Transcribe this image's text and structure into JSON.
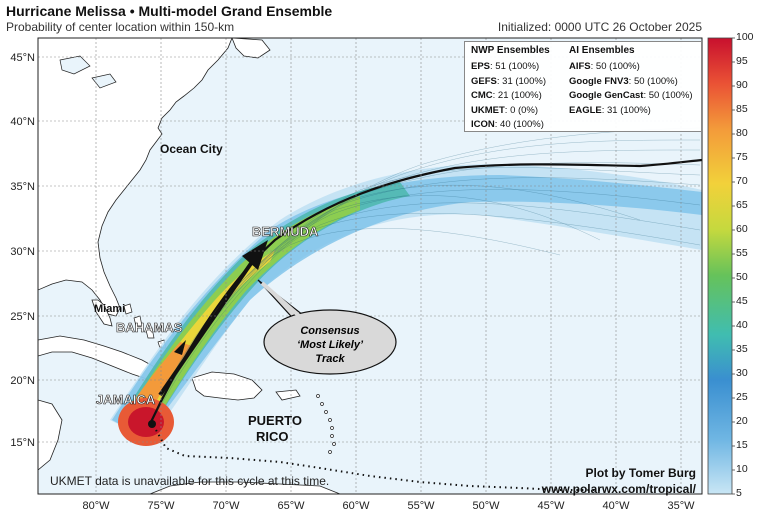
{
  "header": {
    "title": "Hurricane Melissa • Multi-model Grand Ensemble",
    "subtitle": "Probability of center location within 150-km",
    "initialized": "Initialized: 0000 UTC 26 October 2025"
  },
  "map": {
    "lon_labels": [
      "80°W",
      "75°W",
      "70°W",
      "65°W",
      "60°W",
      "55°W",
      "50°W",
      "45°W",
      "40°W",
      "35°W"
    ],
    "lat_labels": [
      "15°N",
      "20°N",
      "25°N",
      "30°N",
      "35°N",
      "40°N",
      "45°N"
    ],
    "place_labels": {
      "ocean_city": "Ocean City",
      "miami": "Miami",
      "bahamas": "BAHAMAS",
      "jamaica": "JAMAICA",
      "puerto_rico_1": "PUERTO",
      "puerto_rico_2": "RICO",
      "bermuda": "BERMUDA"
    },
    "callout": {
      "line1": "Consensus",
      "line2": "‘Most Likely’",
      "line3": "Track"
    }
  },
  "ensembles": {
    "nwp_header": "NWP Ensembles",
    "ai_header": "AI Ensembles",
    "nwp": [
      {
        "name": "EPS",
        "value": "51 (100%)"
      },
      {
        "name": "GEFS",
        "value": "31 (100%)"
      },
      {
        "name": "CMC",
        "value": "21 (100%)"
      },
      {
        "name": "UKMET",
        "value": "0 (0%)"
      },
      {
        "name": "ICON",
        "value": "40 (100%)"
      }
    ],
    "ai": [
      {
        "name": "AIFS",
        "value": "50 (100%)"
      },
      {
        "name": "Google FNV3",
        "value": "50 (100%)"
      },
      {
        "name": "Google GenCast",
        "value": "50 (100%)"
      },
      {
        "name": "EAGLE",
        "value": "31 (100%)"
      }
    ]
  },
  "colorbar": {
    "ticks": [
      "5",
      "10",
      "15",
      "20",
      "25",
      "30",
      "35",
      "40",
      "45",
      "50",
      "55",
      "60",
      "65",
      "70",
      "75",
      "80",
      "85",
      "90",
      "95",
      "100"
    ]
  },
  "footer": {
    "note": "UKMET data is unavailable for this cycle at this time.",
    "credit_1": "Plot by Tomer Burg",
    "credit_2": "www.polarwx.com/tropical/"
  },
  "colors": {
    "ocean": "#e9f4fb",
    "land": "#ffffff",
    "track": "#111111",
    "high_prob": "#d0202a",
    "low_prob": "#4fa3d9"
  }
}
